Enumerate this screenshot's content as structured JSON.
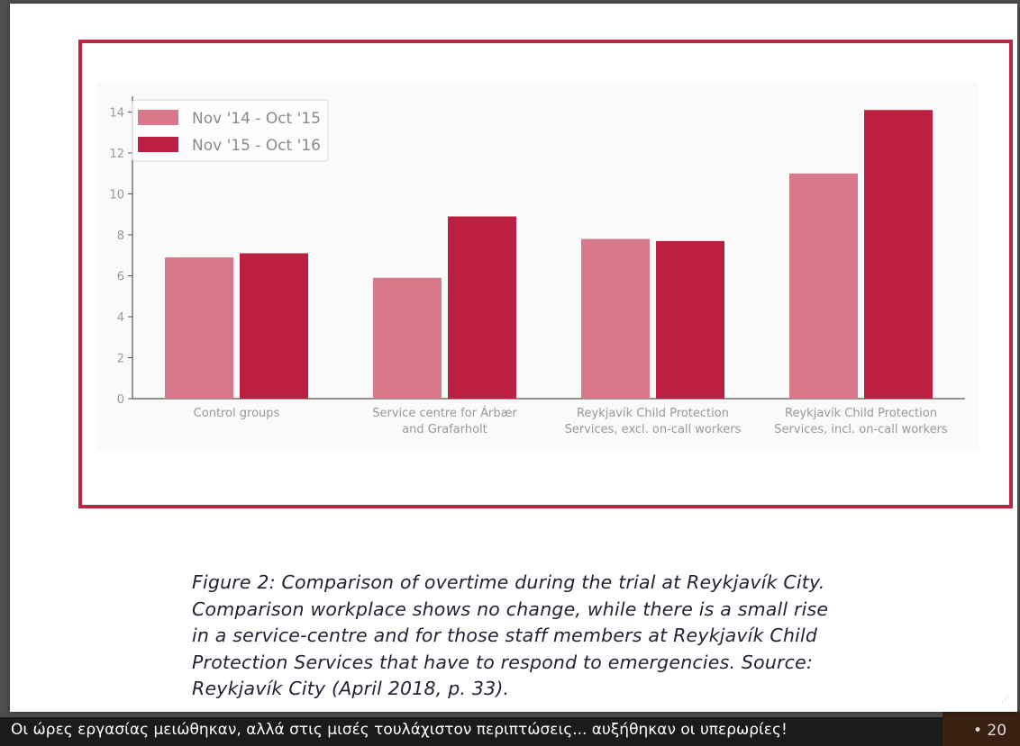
{
  "subtitle": "Οι ώρες εργασίας μειώθηκαν, αλλά στις μισές τουλάχιστον περιπτώσεις... αυξήθηκαν οι υπερωρίες!",
  "caption_lines": [
    "Figure 2: Comparison of overtime during the trial at Reykjavík City.",
    "Comparison workplace shows no change, while there is a small rise",
    "in a service-centre and for those staff members at Reykjavík Child",
    "Protection Services that have to respond to emergencies. Source:",
    "Reykjavík City (April 2018, p. 33)."
  ],
  "colors": {
    "frame": "#c02443",
    "series1": "#d7798a",
    "series2": "#bd1f40",
    "axis": "#555555",
    "tick_text": "#999999"
  },
  "chart_data": {
    "type": "bar",
    "categories": [
      [
        "Control groups"
      ],
      [
        "Service centre for Árbær",
        "and Grafarholt"
      ],
      [
        "Reykjavík Child Protection",
        "Services, excl. on-call workers"
      ],
      [
        "Reykjavík Child Protection",
        "Services,  incl. on-call workers"
      ]
    ],
    "series": [
      {
        "name": "Nov '14 - Oct '15",
        "values": [
          6.9,
          5.9,
          7.8,
          11.0
        ]
      },
      {
        "name": "Nov '15 - Oct '16",
        "values": [
          7.1,
          8.9,
          7.7,
          14.1
        ]
      }
    ],
    "yticks": [
      "0",
      "2",
      "4",
      "6",
      "8",
      "10",
      "12",
      "14"
    ],
    "ylim": [
      0,
      15
    ],
    "legend_position": "top-left",
    "grid": false
  }
}
